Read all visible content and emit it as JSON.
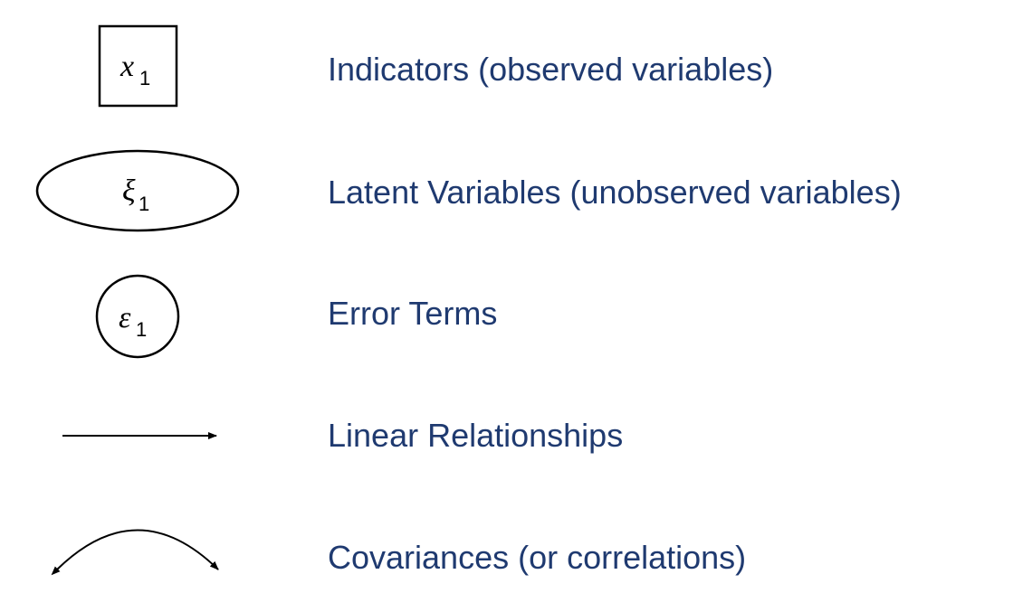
{
  "legend": {
    "items": [
      {
        "symbol": "square",
        "symbol_main": "x",
        "symbol_sub": "1",
        "label": "Indicators (observed variables)"
      },
      {
        "symbol": "ellipse",
        "symbol_main": "ξ",
        "symbol_sub": "1",
        "label": "Latent Variables (unobserved variables)"
      },
      {
        "symbol": "circle",
        "symbol_main": "ε",
        "symbol_sub": "1",
        "label": "Error Terms"
      },
      {
        "symbol": "arrow",
        "label": "Linear Relationships"
      },
      {
        "symbol": "curved-double-arrow",
        "label": "Covariances (or correlations)"
      }
    ]
  },
  "colors": {
    "label_text": "#1f3a70",
    "symbol_stroke": "#000000"
  }
}
